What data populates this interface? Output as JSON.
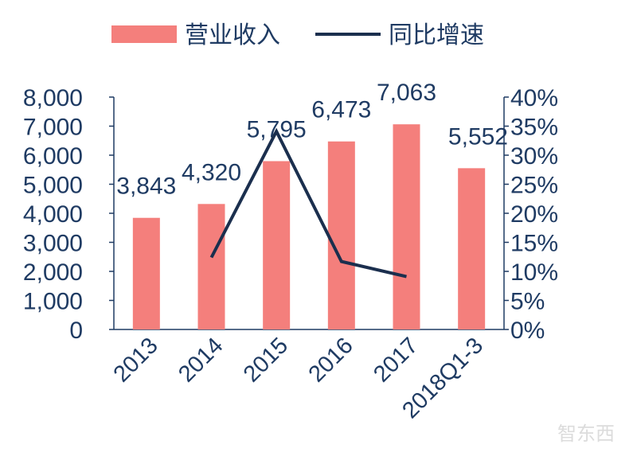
{
  "chart_data": {
    "type": "bar",
    "categories": [
      "2013",
      "2014",
      "2015",
      "2016",
      "2017",
      "2018Q1-3"
    ],
    "series": [
      {
        "name": "营业收入",
        "type": "bar",
        "axis": "left",
        "values": [
          3843,
          4320,
          5795,
          6473,
          7063,
          5552
        ],
        "labels": [
          "3,843",
          "4,320",
          "5,795",
          "6,473",
          "7,063",
          "5,552"
        ]
      },
      {
        "name": "同比增速",
        "type": "line",
        "axis": "right",
        "values": [
          null,
          12.4,
          34.1,
          11.7,
          9.1,
          null
        ]
      }
    ],
    "ylim_left": [
      0,
      8000
    ],
    "ylim_right": [
      0,
      40
    ],
    "yticks_left": [
      "0",
      "1,000",
      "2,000",
      "3,000",
      "4,000",
      "5,000",
      "6,000",
      "7,000",
      "8,000"
    ],
    "yticks_right": [
      "0%",
      "5%",
      "10%",
      "15%",
      "20%",
      "25%",
      "30%",
      "35%",
      "40%"
    ],
    "legend_position": "top",
    "grid": false,
    "colors": {
      "bar": "#f47f7c",
      "line": "#1b2f4e",
      "axis": "#1f3b63"
    }
  },
  "watermark": "智东西"
}
